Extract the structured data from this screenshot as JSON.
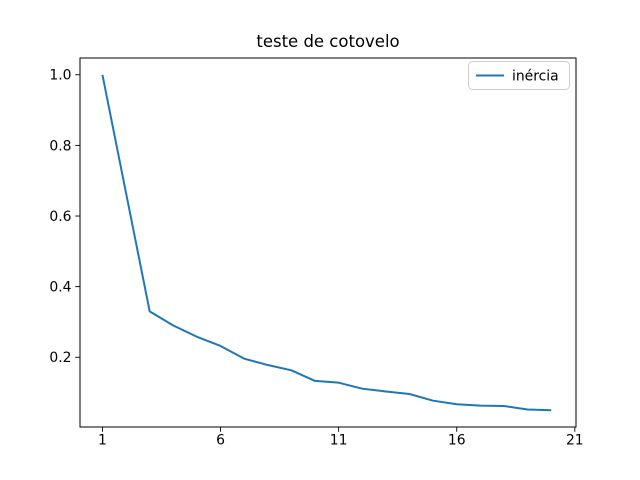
{
  "figure": {
    "background": "#ffffff"
  },
  "chart_data": {
    "type": "line",
    "title": "teste de cotovelo",
    "xlabel": "",
    "ylabel": "",
    "x": [
      1,
      2,
      3,
      4,
      5,
      6,
      7,
      8,
      9,
      10,
      11,
      12,
      13,
      14,
      15,
      16,
      17,
      18,
      19,
      20
    ],
    "series": [
      {
        "name": "inércia",
        "color": "#1f77b4",
        "values": [
          1.0,
          0.665,
          0.33,
          0.29,
          0.258,
          0.232,
          0.196,
          0.178,
          0.163,
          0.133,
          0.128,
          0.111,
          0.103,
          0.096,
          0.077,
          0.067,
          0.063,
          0.062,
          0.052,
          0.05
        ]
      }
    ],
    "xticks": [
      1,
      6,
      11,
      16,
      21
    ],
    "yticks": [
      0.2,
      0.4,
      0.6,
      0.8,
      1.0
    ],
    "xlim": [
      0.05,
      21.05
    ],
    "ylim": [
      0.0025,
      1.0475
    ],
    "grid": false,
    "legend_position": "upper right",
    "axis_color": "#000000",
    "legend_border_color": "#cccccc"
  }
}
